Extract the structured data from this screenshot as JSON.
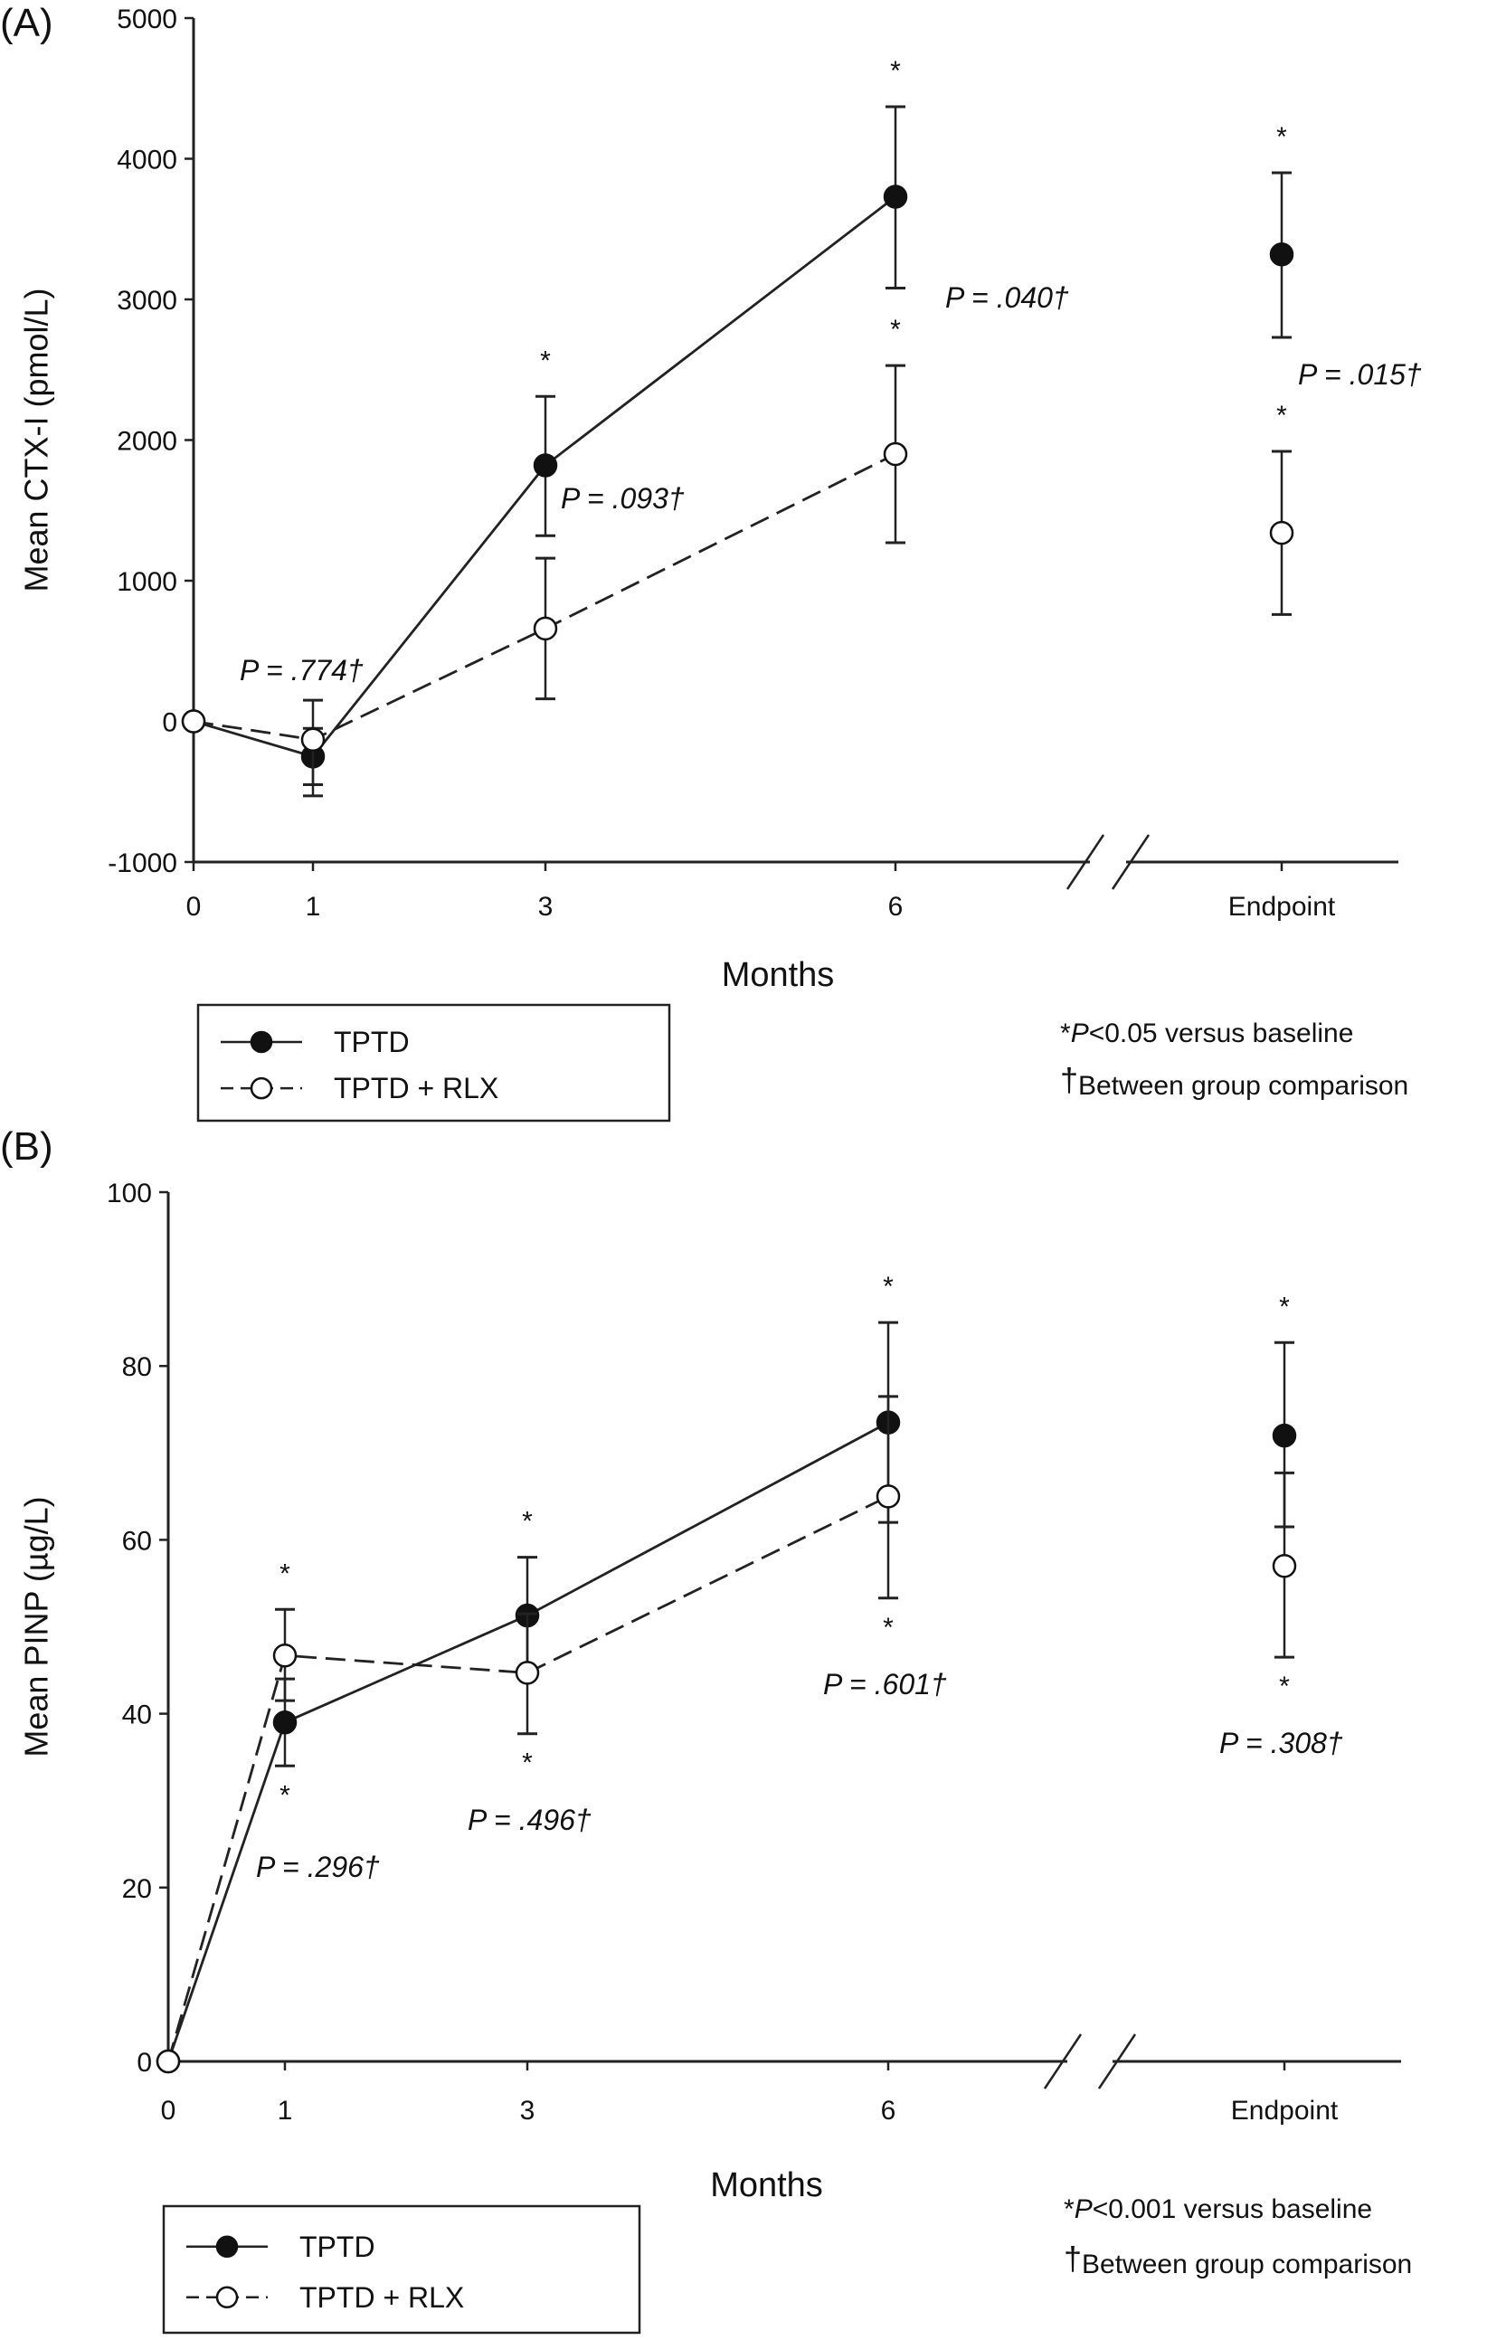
{
  "chart_data": [
    {
      "type": "line",
      "panel_label": "(A)",
      "xlabel": "Months",
      "ylabel": "Mean CTX-I (pmol/L)",
      "ylim": [
        -1000,
        5000
      ],
      "yticks": [
        -1000,
        0,
        1000,
        2000,
        3000,
        4000,
        5000
      ],
      "yticklabels": [
        "-1000",
        "0",
        "1000",
        "2000",
        "3000",
        "4000",
        "5000"
      ],
      "categories": [
        "0",
        "1",
        "3",
        "6",
        "Endpoint"
      ],
      "axis_break": "between 6 and Endpoint",
      "series": [
        {
          "name": "TPTD",
          "marker": "filled-circle",
          "line": "solid",
          "values": [
            0,
            -250,
            1820,
            3730,
            3320
          ],
          "err_low": [
            0,
            -450,
            1320,
            3080,
            2730
          ],
          "err_high": [
            0,
            -50,
            2310,
            4370,
            3900
          ],
          "significant": [
            false,
            false,
            true,
            true,
            true
          ]
        },
        {
          "name": "TPTD + RLX",
          "marker": "open-circle",
          "line": "dashed",
          "values": [
            0,
            -130,
            660,
            1900,
            1340
          ],
          "err_low": [
            0,
            -530,
            160,
            1270,
            760
          ],
          "err_high": [
            0,
            150,
            1160,
            2530,
            1920
          ],
          "significant": [
            false,
            false,
            false,
            true,
            true
          ]
        }
      ],
      "annotations": [
        "P = .774†",
        "P = .093†",
        "P = .040†",
        "P = .015†"
      ],
      "legend": {
        "placement": "bottom-left",
        "entries": [
          "TPTD",
          "TPTD + RLX"
        ]
      },
      "footnotes": [
        "*P<0.05 versus baseline",
        "†Between group comparison"
      ]
    },
    {
      "type": "line",
      "panel_label": "(B)",
      "xlabel": "Months",
      "ylabel": "Mean PINP (µg/L)",
      "ylim": [
        0,
        100
      ],
      "yticks": [
        0,
        20,
        40,
        60,
        80,
        100
      ],
      "yticklabels": [
        "0",
        "20",
        "40",
        "60",
        "80",
        "100"
      ],
      "categories": [
        "0",
        "1",
        "3",
        "6",
        "Endpoint"
      ],
      "axis_break": "between 6 and Endpoint",
      "series": [
        {
          "name": "TPTD",
          "marker": "filled-circle",
          "line": "solid",
          "values": [
            0,
            39,
            51.3,
            73.5,
            72
          ],
          "err_low": [
            0,
            34,
            44.5,
            62,
            61.5
          ],
          "err_high": [
            0,
            44,
            58,
            85,
            82.7
          ],
          "significant": [
            false,
            true,
            true,
            true,
            true
          ]
        },
        {
          "name": "TPTD + RLX",
          "marker": "open-circle",
          "line": "dashed",
          "values": [
            0,
            46.7,
            44.7,
            65,
            57
          ],
          "err_low": [
            0,
            41.5,
            37.7,
            53.3,
            46.5
          ],
          "err_high": [
            0,
            52,
            51.5,
            76.5,
            67.7
          ],
          "significant": [
            false,
            true,
            true,
            true,
            true
          ]
        }
      ],
      "annotations": [
        "P = .296†",
        "P = .496†",
        "P = .601†",
        "P = .308†"
      ],
      "legend": {
        "placement": "bottom-left",
        "entries": [
          "TPTD",
          "TPTD + RLX"
        ]
      },
      "footnotes": [
        "*P<0.001 versus baseline",
        "†Between group comparison"
      ]
    }
  ]
}
